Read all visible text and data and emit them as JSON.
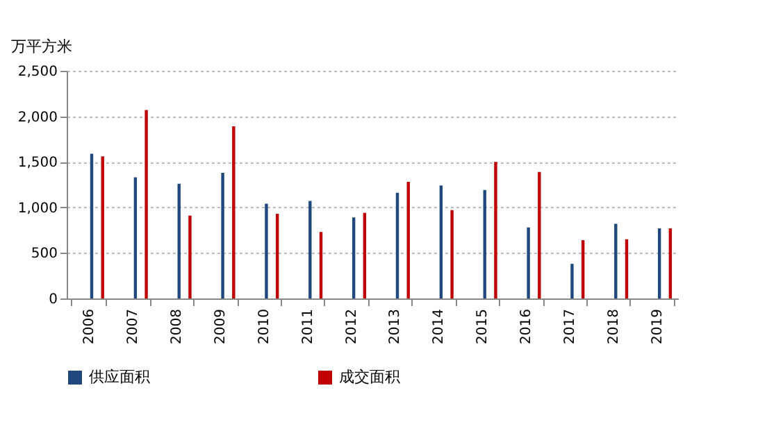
{
  "chart_data": {
    "type": "bar",
    "ylabel": "万平方米",
    "categories": [
      "2006",
      "2007",
      "2008",
      "2009",
      "2010",
      "2011",
      "2012",
      "2013",
      "2014",
      "2015",
      "2016",
      "2017",
      "2018",
      "2019"
    ],
    "series": [
      {
        "name": "供应面积",
        "color": "#1f497d",
        "values": [
          1590,
          1330,
          1260,
          1380,
          1040,
          1070,
          890,
          1160,
          1240,
          1190,
          780,
          380,
          820,
          770
        ]
      },
      {
        "name": "成交面积",
        "color": "#c00000",
        "values": [
          1560,
          2070,
          910,
          1890,
          930,
          730,
          940,
          1280,
          970,
          1500,
          1390,
          640,
          650,
          770
        ]
      }
    ],
    "ylim": [
      0,
      2500
    ],
    "yticks": [
      {
        "value": 0,
        "label": "0"
      },
      {
        "value": 500,
        "label": "500"
      },
      {
        "value": 1000,
        "label": "1,000"
      },
      {
        "value": 1500,
        "label": "1,500"
      },
      {
        "value": 2000,
        "label": "2,000"
      },
      {
        "value": 2500,
        "label": "2,500"
      }
    ],
    "grid": "y",
    "legend": "bottom"
  }
}
